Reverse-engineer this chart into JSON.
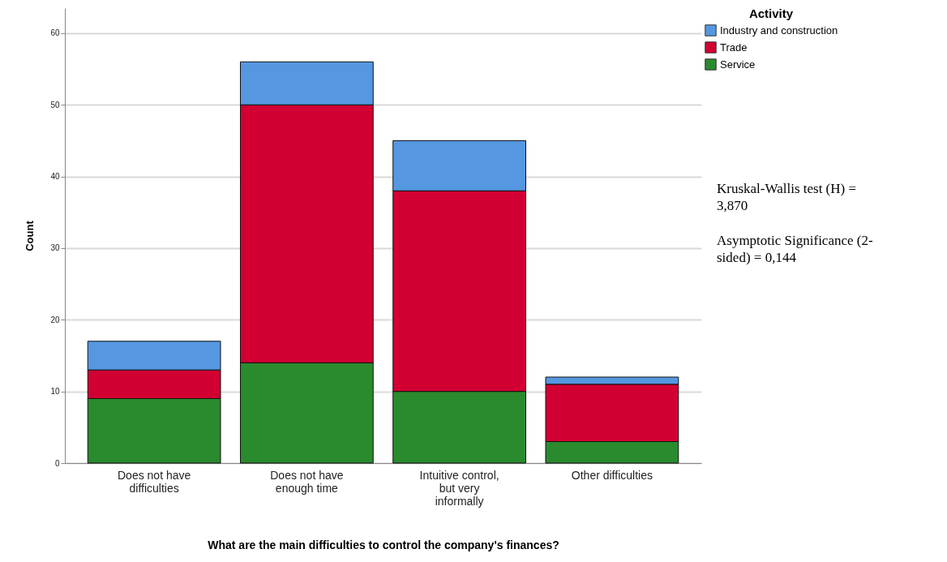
{
  "chart_data": {
    "type": "bar",
    "stacked": true,
    "xlabel": "What are the main difficulties to control the company's finances?",
    "ylabel": "Count",
    "legend_title": "Activity",
    "categories": [
      "Does not have difficulties",
      "Does not have enough time",
      "Intuitive control, but very informally",
      "Other difficulties"
    ],
    "series": [
      {
        "name": "Service",
        "color": "#2a8a2e",
        "values": [
          9,
          14,
          10,
          3
        ]
      },
      {
        "name": "Trade",
        "color": "#d20032",
        "values": [
          4,
          36,
          28,
          8
        ]
      },
      {
        "name": "Industry and construction",
        "color": "#5597e0",
        "values": [
          4,
          6,
          7,
          1
        ]
      }
    ],
    "ylim": [
      0,
      63.5
    ],
    "yticks": [
      0,
      10,
      20,
      30,
      40,
      50,
      60
    ],
    "grid": "y",
    "legend": "top right",
    "annotations": [
      "Kruskal-Wallis test (H) = 3,870",
      "Asymptotic Significance (2-sided) = 0,144"
    ]
  }
}
